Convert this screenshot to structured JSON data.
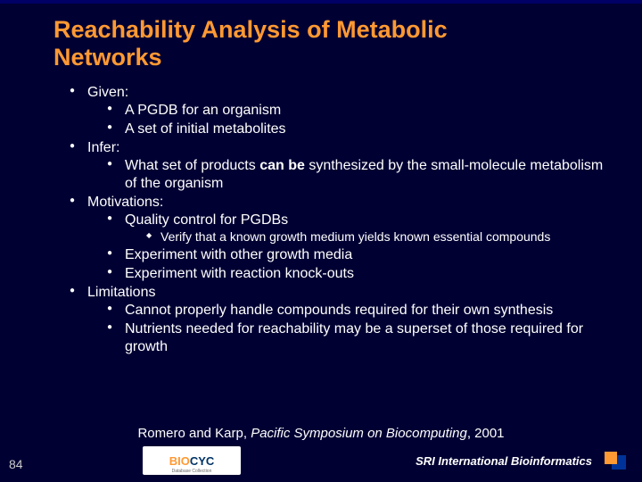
{
  "title_line1": "Reachability Analysis of Metabolic",
  "title_line2": "Networks",
  "items": {
    "given": "Given:",
    "given_a": "A PGDB for an organism",
    "given_b": "A set of initial metabolites",
    "infer": "Infer:",
    "infer_a_pre": "What set of products ",
    "infer_a_bold": "can be",
    "infer_a_post": " synthesized by the small-molecule metabolism of the organism",
    "motiv": "Motivations:",
    "motiv_a": "Quality control for PGDBs",
    "motiv_a1": "Verify that a known growth medium yields known essential compounds",
    "motiv_b": "Experiment with other growth media",
    "motiv_c": "Experiment with reaction knock-outs",
    "limit": "Limitations",
    "limit_a": "Cannot properly handle compounds required for their own synthesis",
    "limit_b": "Nutrients needed for reachability may be a superset of those required for growth"
  },
  "citation_pre": "Romero and Karp, ",
  "citation_italic": "Pacific Symposium on Biocomputing",
  "citation_post": ", 2001",
  "page_number": "84",
  "logo_bio": "BIO",
  "logo_cyc": "CYC",
  "logo_sub": "Database Collection",
  "sri_text": "SRI International Bioinformatics",
  "colors": {
    "background": "#000033",
    "title": "#ff9933",
    "text": "#ffffff",
    "accent_orange": "#ff9933",
    "accent_blue": "#003399"
  }
}
